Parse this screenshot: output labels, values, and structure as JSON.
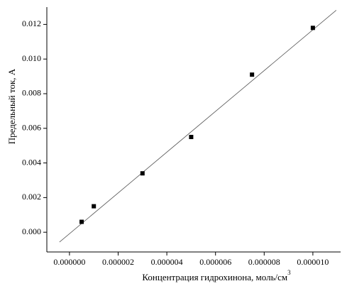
{
  "chart_data": {
    "type": "scatter",
    "x_label": "Концентрация гидрохинона, моль/см",
    "x_label_sup": "3",
    "y_label": "Предельный ток, А",
    "x": [
      5e-07,
      1e-06,
      3e-06,
      5e-06,
      7.5e-06,
      1e-05
    ],
    "values": [
      0.0006,
      0.0015,
      0.0034,
      0.0055,
      0.0091,
      0.0118
    ],
    "color": "#000000",
    "fit": {
      "x": [
        -4.1e-07,
        1.096e-05
      ],
      "y": [
        -0.00057,
        0.01282
      ],
      "color": "#555555"
    },
    "xlim": [
      -9.3e-07,
      1.114e-05
    ],
    "ylim": [
      -0.00114,
      0.013
    ],
    "xticks": [
      {
        "value": 0,
        "label": "0.000000"
      },
      {
        "value": 2e-06,
        "label": "0.000002"
      },
      {
        "value": 4e-06,
        "label": "0.000004"
      },
      {
        "value": 6e-06,
        "label": "0.000006"
      },
      {
        "value": 8e-06,
        "label": "0.000008"
      },
      {
        "value": 1e-05,
        "label": "0.000010"
      }
    ],
    "yticks": [
      {
        "value": 0,
        "label": "0.000"
      },
      {
        "value": 0.002,
        "label": "0.002"
      },
      {
        "value": 0.004,
        "label": "0.004"
      },
      {
        "value": 0.006,
        "label": "0.006"
      },
      {
        "value": 0.008,
        "label": "0.008"
      },
      {
        "value": 0.01,
        "label": "0.010"
      },
      {
        "value": 0.012,
        "label": "0.012"
      }
    ]
  }
}
